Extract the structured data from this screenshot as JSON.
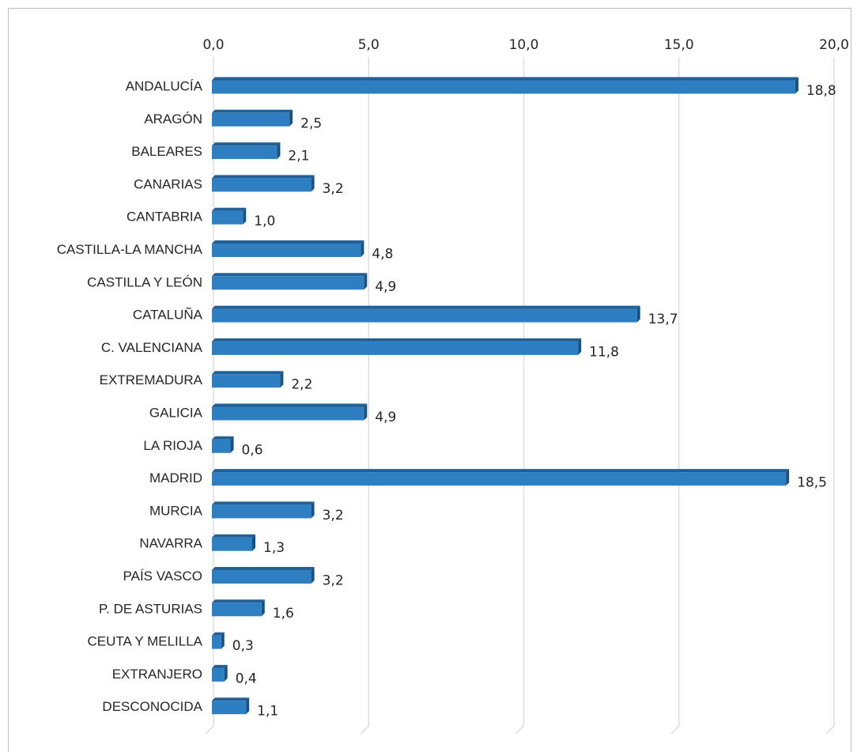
{
  "chart_data": {
    "type": "bar",
    "orientation": "horizontal",
    "categories": [
      "ANDALUCÍA",
      "ARAGÓN",
      "BALEARES",
      "CANARIAS",
      "CANTABRIA",
      "CASTILLA-LA MANCHA",
      "CASTILLA Y LEÓN",
      "CATALUÑA",
      "C. VALENCIANA",
      "EXTREMADURA",
      "GALICIA",
      "LA RIOJA",
      "MADRID",
      "MURCIA",
      "NAVARRA",
      "PAÍS VASCO",
      "P. DE ASTURIAS",
      "CEUTA Y MELILLA",
      "EXTRANJERO",
      "DESCONOCIDA"
    ],
    "values": [
      18.8,
      2.5,
      2.1,
      3.2,
      1.0,
      4.8,
      4.9,
      13.7,
      11.8,
      2.2,
      4.9,
      0.6,
      18.5,
      3.2,
      1.3,
      3.2,
      1.6,
      0.3,
      0.4,
      1.1
    ],
    "value_labels": [
      "18,8",
      "2,5",
      "2,1",
      "3,2",
      "1,0",
      "4,8",
      "4,9",
      "13,7",
      "11,8",
      "2,2",
      "4,9",
      "0,6",
      "18,5",
      "3,2",
      "1,3",
      "3,2",
      "1,6",
      "0,3",
      "0,4",
      "1,1"
    ],
    "color": "#2e7fc1",
    "xlim": [
      0,
      20
    ],
    "xticks": [
      {
        "value": 0,
        "label": "0,0"
      },
      {
        "value": 5,
        "label": "5,0"
      },
      {
        "value": 10,
        "label": "10,0"
      },
      {
        "value": 15,
        "label": "15,0"
      },
      {
        "value": 20,
        "label": "20,0"
      }
    ],
    "grid": true
  }
}
